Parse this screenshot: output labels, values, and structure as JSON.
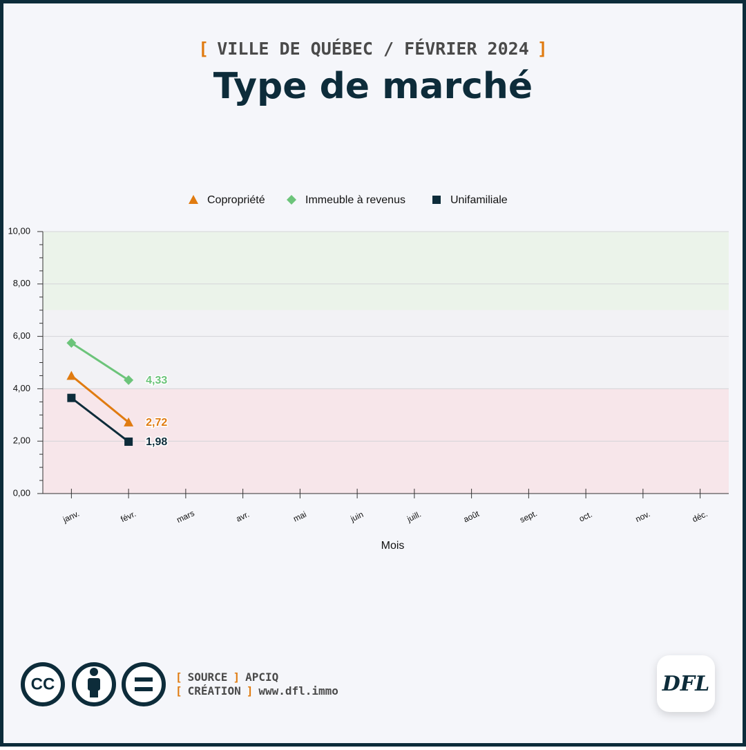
{
  "header": {
    "open": "[",
    "close": "]",
    "supertitle": "VILLE DE QUÉBEC / FÉVRIER 2024",
    "title": "Type de marché"
  },
  "chart_data": {
    "type": "line",
    "categories": [
      "janv.",
      "févr.",
      "mars",
      "avr.",
      "mai",
      "juin",
      "juill.",
      "août",
      "sept.",
      "oct.",
      "nov.",
      "déc."
    ],
    "series": [
      {
        "name": "Copropriété",
        "color": "#e07b10",
        "marker": "triangle",
        "values": [
          4.5,
          2.72,
          null,
          null,
          null,
          null,
          null,
          null,
          null,
          null,
          null,
          null
        ],
        "value_labels": [
          null,
          "2,72",
          null,
          null,
          null,
          null,
          null,
          null,
          null,
          null,
          null,
          null
        ]
      },
      {
        "name": "Immeuble à revenus",
        "color": "#6cc47a",
        "marker": "diamond",
        "values": [
          5.75,
          4.33,
          null,
          null,
          null,
          null,
          null,
          null,
          null,
          null,
          null,
          null
        ],
        "value_labels": [
          null,
          "4,33",
          null,
          null,
          null,
          null,
          null,
          null,
          null,
          null,
          null,
          null
        ]
      },
      {
        "name": "Unifamiliale",
        "color": "#0d2c3a",
        "marker": "square",
        "values": [
          3.65,
          1.98,
          null,
          null,
          null,
          null,
          null,
          null,
          null,
          null,
          null,
          null
        ],
        "value_labels": [
          null,
          "1,98",
          null,
          null,
          null,
          null,
          null,
          null,
          null,
          null,
          null,
          null
        ]
      }
    ],
    "xlabel": "Mois",
    "ylim": [
      0,
      10
    ],
    "yticks": [
      {
        "value": 0,
        "label": "0,00"
      },
      {
        "value": 2,
        "label": "2,00"
      },
      {
        "value": 4,
        "label": "4,00"
      },
      {
        "value": 6,
        "label": "6,00"
      },
      {
        "value": 8,
        "label": "8,00"
      },
      {
        "value": 10,
        "label": "10,00"
      }
    ],
    "yminorticks": [
      0.5,
      1,
      1.5,
      2.5,
      3,
      3.5,
      4.5,
      5,
      5.5,
      6.5,
      7,
      7.5,
      8.5,
      9,
      9.5
    ],
    "bands": [
      {
        "from": 0,
        "to": 4,
        "color": "#f7e6ea"
      },
      {
        "from": 4,
        "to": 7,
        "color": "#f2f2f5"
      },
      {
        "from": 7,
        "to": 10,
        "color": "#ebf3ea"
      }
    ],
    "grid": true,
    "legend": "top"
  },
  "footer": {
    "source_label": "SOURCE",
    "source": "APCIQ",
    "creation_label": "CRÉATION",
    "creation": "www.dfl.immo",
    "logo": "DFL",
    "cc": "CC"
  }
}
